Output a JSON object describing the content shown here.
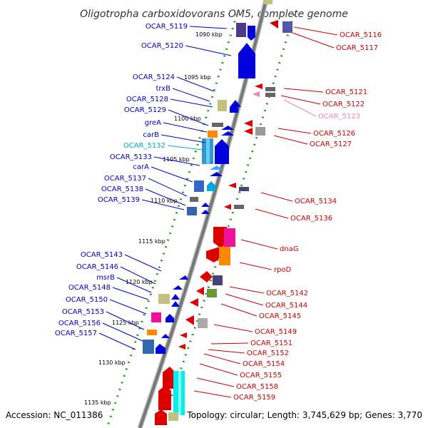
{
  "title": "Oligotropha carboxidovorans OM5, complete genome",
  "footer": {
    "accession": "Accession: NC_011386",
    "summary": "Topology: circular; Length: 3,745,629 bp; Genes: 3,770"
  },
  "colors": {
    "forward": "#0000cc",
    "reverse": "#cc0000",
    "highlight_fwd": "#00aacc",
    "highlight_rev": "#ee88aa",
    "backbone": "#888888",
    "tick": "#229922"
  },
  "kbp_labels": [
    "1090 kbp",
    "1095 kbp",
    "1100 kbp",
    "1105 kbp",
    "1110 kbp",
    "1115 kbp",
    "1120 kbp",
    "1125 kbp",
    "1130 kbp",
    "1135 kbp"
  ],
  "left_labels": [
    {
      "name": "OCAR_5119",
      "style": "forward"
    },
    {
      "name": "OCAR_5120",
      "style": "forward"
    },
    {
      "name": "OCAR_5124",
      "style": "forward"
    },
    {
      "name": "trxB",
      "style": "forward"
    },
    {
      "name": "OCAR_5128",
      "style": "forward"
    },
    {
      "name": "OCAR_5129",
      "style": "forward"
    },
    {
      "name": "greA",
      "style": "forward"
    },
    {
      "name": "carB",
      "style": "forward"
    },
    {
      "name": "OCAR_5132",
      "style": "highlight"
    },
    {
      "name": "OCAR_5133",
      "style": "forward"
    },
    {
      "name": "carA",
      "style": "forward"
    },
    {
      "name": "OCAR_5137",
      "style": "forward"
    },
    {
      "name": "OCAR_5138",
      "style": "forward"
    },
    {
      "name": "OCAR_5139",
      "style": "forward"
    },
    {
      "name": "OCAR_5143",
      "style": "forward"
    },
    {
      "name": "OCAR_5146",
      "style": "forward"
    },
    {
      "name": "msrB",
      "style": "forward"
    },
    {
      "name": "OCAR_5148",
      "style": "forward"
    },
    {
      "name": "OCAR_5150",
      "style": "forward"
    },
    {
      "name": "OCAR_5153",
      "style": "forward"
    },
    {
      "name": "OCAR_5156",
      "style": "forward"
    },
    {
      "name": "OCAR_5157",
      "style": "forward"
    }
  ],
  "right_labels": [
    {
      "name": "OCAR_5116",
      "style": "reverse"
    },
    {
      "name": "OCAR_5117",
      "style": "reverse"
    },
    {
      "name": "OCAR_5121",
      "style": "reverse"
    },
    {
      "name": "OCAR_5122",
      "style": "reverse"
    },
    {
      "name": "OCAR_5123",
      "style": "highlight"
    },
    {
      "name": "OCAR_5126",
      "style": "reverse"
    },
    {
      "name": "OCAR_5127",
      "style": "reverse"
    },
    {
      "name": "OCAR_5134",
      "style": "reverse"
    },
    {
      "name": "OCAR_5136",
      "style": "reverse"
    },
    {
      "name": "dnaG",
      "style": "reverse"
    },
    {
      "name": "rpoD",
      "style": "reverse"
    },
    {
      "name": "OCAR_5142",
      "style": "reverse"
    },
    {
      "name": "OCAR_5144",
      "style": "reverse"
    },
    {
      "name": "OCAR_5145",
      "style": "reverse"
    },
    {
      "name": "OCAR_5149",
      "style": "reverse"
    },
    {
      "name": "OCAR_5151",
      "style": "reverse"
    },
    {
      "name": "OCAR_5152",
      "style": "reverse"
    },
    {
      "name": "OCAR_5154",
      "style": "reverse"
    },
    {
      "name": "OCAR_5155",
      "style": "reverse"
    },
    {
      "name": "OCAR_5158",
      "style": "reverse"
    },
    {
      "name": "OCAR_5159",
      "style": "reverse"
    }
  ]
}
